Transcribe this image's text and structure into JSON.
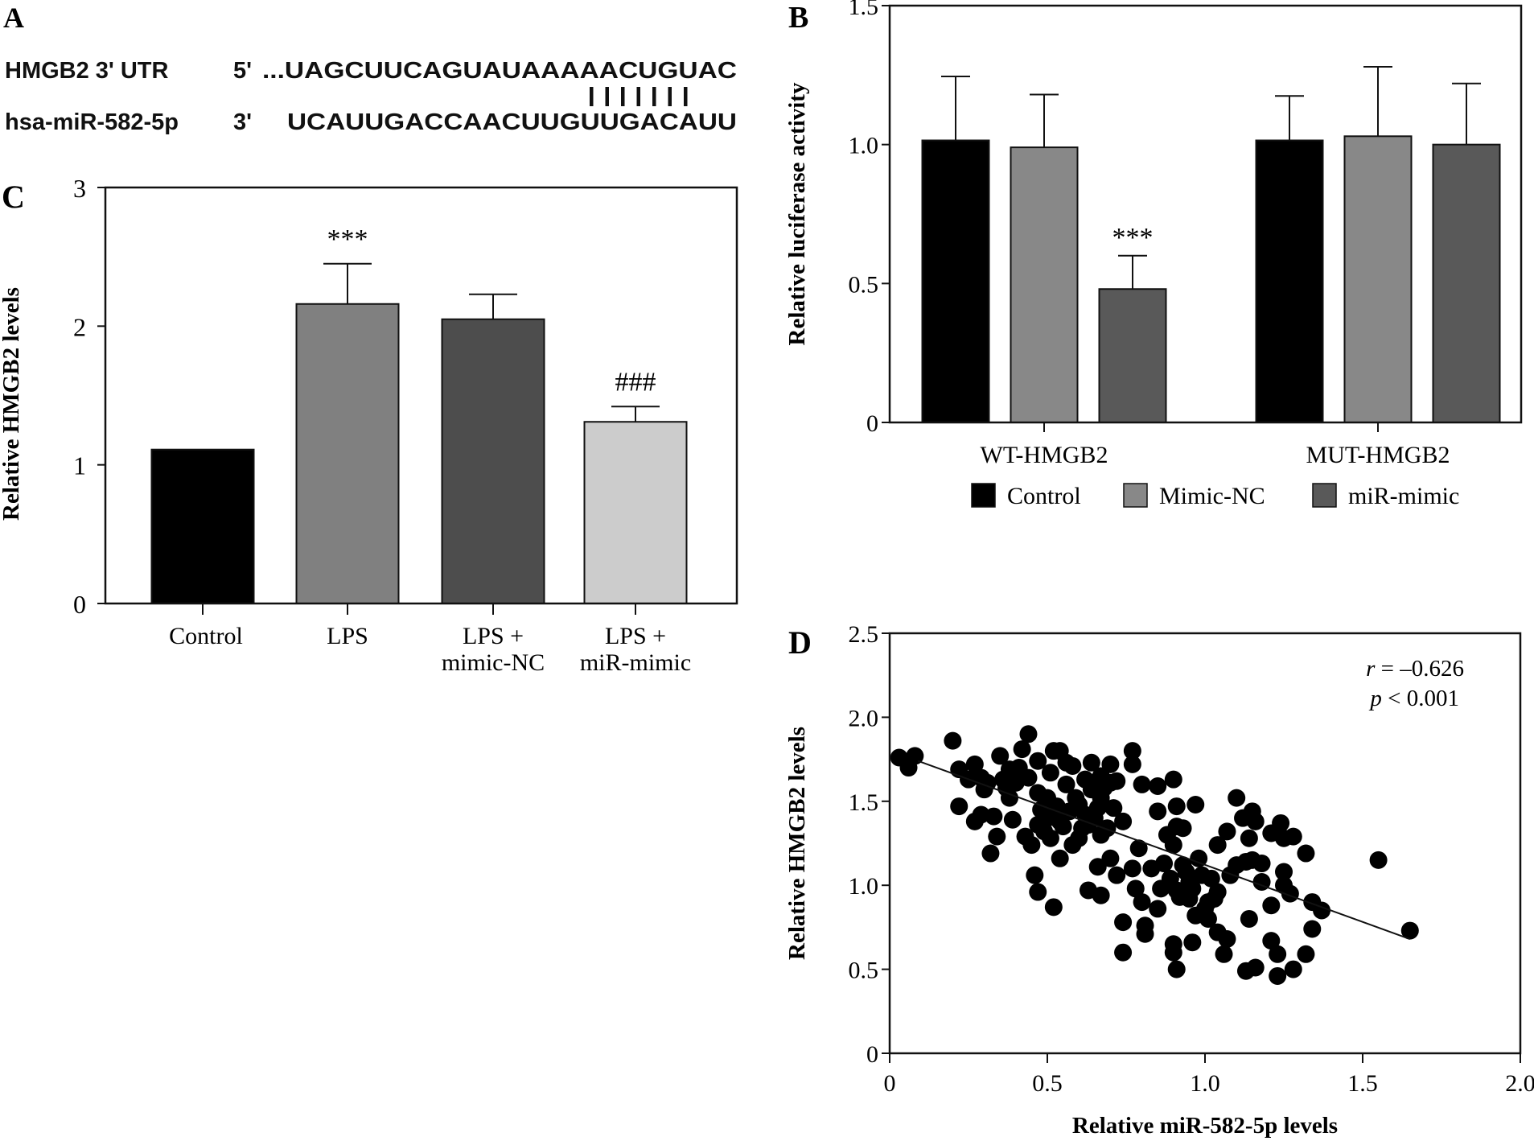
{
  "panel_a": {
    "label": "A",
    "row1_name": "HMGB2 3' UTR",
    "row1_end": "5'",
    "row1_seq": "...UAGCUUCAGUAUAAAAACUGUAC",
    "row2_name": "hsa-miR-582-5p",
    "row2_end": "3'",
    "row2_seq": "UCAUUGACCAACUUGUUGACAUU",
    "pair_marks": "| | | | | | |",
    "pair_count": 7
  },
  "chart_data": [
    {
      "id": "B",
      "panel_label": "B",
      "type": "bar",
      "title": "",
      "xlabel": "",
      "ylabel": "Relative luciferase activity",
      "ylim": [
        0,
        1.5
      ],
      "yticks": [
        0,
        0.5,
        1.0,
        1.5
      ],
      "ytick_labels": [
        "0",
        "0.5",
        "1.0",
        "1.5"
      ],
      "categories": [
        "WT-HMGB2",
        "MUT-HMGB2"
      ],
      "legend_position": "bottom",
      "series": [
        {
          "name": "Control",
          "color": "#000000",
          "values": [
            1.015,
            1.015
          ],
          "errors": [
            0.23,
            0.16
          ]
        },
        {
          "name": "Mimic-NC",
          "color": "#888888",
          "values": [
            0.99,
            1.03
          ],
          "errors": [
            0.19,
            0.25
          ]
        },
        {
          "name": "miR-mimic",
          "color": "#595959",
          "values": [
            0.48,
            1.0
          ],
          "errors": [
            0.12,
            0.22
          ]
        }
      ],
      "annotations": [
        {
          "category": "WT-HMGB2",
          "series": "miR-mimic",
          "text": "***"
        }
      ],
      "grid": false
    },
    {
      "id": "C",
      "panel_label": "C",
      "type": "bar",
      "title": "",
      "xlabel": "",
      "ylabel": "Relative HMGB2 levels",
      "ylim": [
        0,
        3
      ],
      "yticks": [
        0,
        1,
        2,
        3
      ],
      "ytick_labels": [
        "0",
        "1",
        "2",
        "3"
      ],
      "categories": [
        "Control",
        "LPS",
        "LPS + mimic-NC",
        "LPS + miR-mimic"
      ],
      "category_lines": [
        [
          "Control"
        ],
        [
          "LPS"
        ],
        [
          "LPS +",
          "mimic-NC"
        ],
        [
          "LPS +",
          "miR-mimic"
        ]
      ],
      "values": [
        1.11,
        2.16,
        2.05,
        1.31
      ],
      "errors": [
        0,
        0.29,
        0.18,
        0.11
      ],
      "colors": [
        "#000000",
        "#808080",
        "#4d4d4d",
        "#cccccc"
      ],
      "annotations": [
        "",
        "***",
        "",
        "###"
      ],
      "grid": false
    },
    {
      "id": "D",
      "panel_label": "D",
      "type": "scatter",
      "title": "",
      "xlabel": "Relative miR-582-5p levels",
      "ylabel": "Relative HMGB2 levels",
      "xlim": [
        0,
        2.0
      ],
      "ylim": [
        0,
        2.5
      ],
      "xticks": [
        0,
        0.5,
        1.0,
        1.5,
        2.0
      ],
      "xtick_labels": [
        "0",
        "0.5",
        "1.0",
        "1.5",
        "2.0"
      ],
      "yticks": [
        0,
        0.5,
        1.0,
        1.5,
        2.0,
        2.5
      ],
      "ytick_labels": [
        "0",
        "0.5",
        "1.0",
        "1.5",
        "2.0",
        "2.5"
      ],
      "stat_r": "r = –0.626",
      "stat_p": "p < 0.001",
      "stat_r_var": "r",
      "stat_r_rest": " = –0.626",
      "stat_p_var": "p",
      "stat_p_rest": " < 0.001",
      "fit_line": {
        "x": [
          0.09,
          1.65
        ],
        "y": [
          1.74,
          0.68
        ]
      },
      "grid": false,
      "points": [
        [
          0.03,
          1.76
        ],
        [
          0.08,
          1.77
        ],
        [
          0.06,
          1.7
        ],
        [
          0.2,
          1.86
        ],
        [
          0.22,
          1.47
        ],
        [
          0.22,
          1.69
        ],
        [
          0.27,
          1.72
        ],
        [
          0.25,
          1.63
        ],
        [
          0.29,
          1.64
        ],
        [
          0.3,
          1.57
        ],
        [
          0.27,
          1.38
        ],
        [
          0.29,
          1.42
        ],
        [
          0.33,
          1.41
        ],
        [
          0.34,
          1.29
        ],
        [
          0.32,
          1.19
        ],
        [
          0.35,
          1.77
        ],
        [
          0.36,
          1.63
        ],
        [
          0.38,
          1.69
        ],
        [
          0.4,
          1.61
        ],
        [
          0.38,
          1.52
        ],
        [
          0.39,
          1.39
        ],
        [
          0.44,
          1.9
        ],
        [
          0.42,
          1.81
        ],
        [
          0.47,
          1.74
        ],
        [
          0.44,
          1.64
        ],
        [
          0.47,
          1.55
        ],
        [
          0.5,
          1.52
        ],
        [
          0.43,
          1.29
        ],
        [
          0.45,
          1.24
        ],
        [
          0.47,
          1.36
        ],
        [
          0.46,
          1.06
        ],
        [
          0.47,
          0.96
        ],
        [
          0.51,
          1.67
        ],
        [
          0.52,
          1.8
        ],
        [
          0.54,
          1.8
        ],
        [
          0.51,
          1.43
        ],
        [
          0.54,
          1.38
        ],
        [
          0.51,
          1.28
        ],
        [
          0.54,
          1.16
        ],
        [
          0.52,
          0.87
        ],
        [
          0.56,
          1.73
        ],
        [
          0.58,
          1.71
        ],
        [
          0.56,
          1.6
        ],
        [
          0.59,
          1.52
        ],
        [
          0.57,
          1.44
        ],
        [
          0.58,
          1.24
        ],
        [
          0.61,
          1.34
        ],
        [
          0.63,
          0.97
        ],
        [
          0.64,
          1.73
        ],
        [
          0.67,
          1.65
        ],
        [
          0.64,
          1.57
        ],
        [
          0.67,
          1.52
        ],
        [
          0.65,
          1.4
        ],
        [
          0.69,
          1.34
        ],
        [
          0.67,
          1.3
        ],
        [
          0.7,
          1.72
        ],
        [
          0.7,
          1.61
        ],
        [
          0.71,
          1.46
        ],
        [
          0.74,
          1.38
        ],
        [
          0.66,
          1.11
        ],
        [
          0.7,
          1.16
        ],
        [
          0.72,
          1.06
        ],
        [
          0.67,
          0.94
        ],
        [
          0.74,
          0.78
        ],
        [
          0.74,
          0.6
        ],
        [
          0.77,
          1.8
        ],
        [
          0.77,
          1.72
        ],
        [
          0.8,
          1.6
        ],
        [
          0.85,
          1.59
        ],
        [
          0.79,
          1.22
        ],
        [
          0.77,
          1.1
        ],
        [
          0.78,
          0.98
        ],
        [
          0.8,
          0.9
        ],
        [
          0.81,
          0.76
        ],
        [
          0.81,
          0.71
        ],
        [
          0.83,
          1.1
        ],
        [
          0.85,
          1.44
        ],
        [
          0.85,
          0.86
        ],
        [
          0.87,
          1.13
        ],
        [
          0.9,
          1.63
        ],
        [
          0.91,
          1.47
        ],
        [
          0.91,
          1.35
        ],
        [
          0.93,
          1.34
        ],
        [
          0.9,
          1.24
        ],
        [
          0.91,
          0.97
        ],
        [
          0.92,
          0.93
        ],
        [
          0.94,
          1.08
        ],
        [
          0.95,
          1.02
        ],
        [
          0.9,
          0.65
        ],
        [
          0.9,
          0.6
        ],
        [
          0.91,
          0.5
        ],
        [
          0.96,
          0.66
        ],
        [
          0.97,
          1.48
        ],
        [
          0.98,
          1.16
        ],
        [
          0.97,
          0.82
        ],
        [
          1.01,
          0.8
        ],
        [
          1.01,
          0.9
        ],
        [
          1.02,
          1.04
        ],
        [
          1.04,
          1.24
        ],
        [
          1.07,
          1.32
        ],
        [
          1.04,
          0.96
        ],
        [
          1.08,
          1.06
        ],
        [
          1.04,
          0.72
        ],
        [
          1.07,
          0.68
        ],
        [
          1.06,
          0.59
        ],
        [
          1.1,
          1.52
        ],
        [
          1.12,
          1.4
        ],
        [
          1.15,
          1.44
        ],
        [
          1.14,
          1.28
        ],
        [
          1.13,
          1.14
        ],
        [
          1.15,
          1.15
        ],
        [
          1.18,
          1.13
        ],
        [
          1.18,
          1.02
        ],
        [
          1.14,
          0.8
        ],
        [
          1.13,
          0.49
        ],
        [
          1.16,
          0.51
        ],
        [
          1.21,
          0.88
        ],
        [
          1.21,
          0.67
        ],
        [
          1.23,
          0.59
        ],
        [
          1.23,
          0.46
        ],
        [
          1.21,
          1.31
        ],
        [
          1.24,
          1.37
        ],
        [
          1.25,
          1.28
        ],
        [
          1.28,
          1.29
        ],
        [
          1.25,
          1.08
        ],
        [
          1.25,
          1.0
        ],
        [
          1.27,
          0.95
        ],
        [
          1.28,
          0.5
        ],
        [
          1.32,
          0.59
        ],
        [
          1.32,
          1.19
        ],
        [
          1.34,
          0.9
        ],
        [
          1.37,
          0.85
        ],
        [
          1.34,
          0.74
        ],
        [
          1.55,
          1.15
        ],
        [
          1.65,
          0.73
        ],
        [
          0.48,
          1.45
        ],
        [
          0.5,
          1.4
        ],
        [
          0.53,
          1.47
        ],
        [
          0.55,
          1.35
        ],
        [
          0.6,
          1.48
        ],
        [
          0.62,
          1.42
        ],
        [
          0.63,
          1.36
        ],
        [
          0.66,
          1.46
        ],
        [
          0.68,
          1.58
        ],
        [
          0.62,
          1.63
        ],
        [
          0.6,
          1.28
        ],
        [
          0.72,
          1.62
        ],
        [
          0.41,
          1.7
        ],
        [
          0.37,
          1.58
        ],
        [
          0.31,
          1.61
        ],
        [
          0.49,
          1.32
        ],
        [
          0.88,
          1.3
        ],
        [
          0.93,
          1.12
        ],
        [
          0.96,
          0.98
        ],
        [
          0.89,
          1.04
        ],
        [
          0.99,
          1.06
        ],
        [
          1.03,
          0.92
        ],
        [
          1.1,
          1.12
        ],
        [
          1.16,
          1.38
        ],
        [
          0.86,
          0.98
        ],
        [
          0.95,
          0.92
        ],
        [
          1.0,
          0.86
        ]
      ]
    }
  ]
}
